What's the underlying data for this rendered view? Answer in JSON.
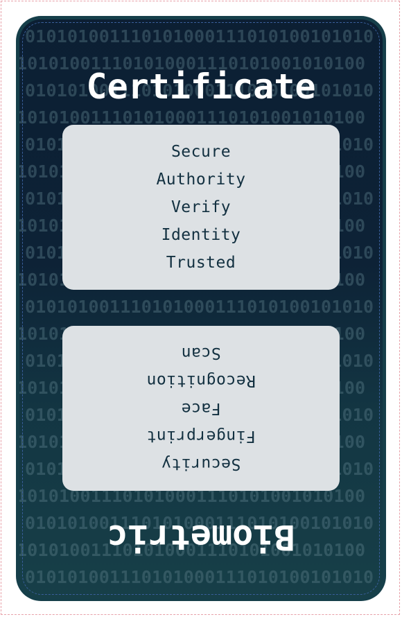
{
  "card": {
    "title_top": "Certificate",
    "title_bottom": "Biometric",
    "top_panel_words": [
      "Secure",
      "Authority",
      "Verify",
      "Identity",
      "Trusted"
    ],
    "bottom_panel_words": [
      "Security",
      "Fingerprint",
      "Face",
      "Recognition",
      "Scan"
    ],
    "background_pattern": "binary-digits",
    "colors": {
      "card_frame": "#163f4a",
      "card_top": "#0c1f33",
      "card_bottom": "#173f48",
      "panel": "#dde1e4",
      "panel_text": "#123040",
      "title": "#ffffff",
      "dashed_border": "#3a5f9c"
    }
  },
  "binary_rows": [
    "010101001110101000111010100101010",
    "101010011101010001110101001010100",
    "010101001110101000111010100101010",
    "101010011101010001110101001010100",
    "010101001110101000111010100101010",
    "101010011101010001110101001010100",
    "010101001110101000111010100101010",
    "101010011101010001110101001010100",
    "010101001110101000111010100101010",
    "101010011101010001110101001010100",
    "010101001110101000111010100101010",
    "101010011101010001110101001010100",
    "010101001110101000111010100101010",
    "101010011101010001110101001010100",
    "010101001110101000111010100101010",
    "101010011101010001110101001010100",
    "010101001110101000111010100101010",
    "101010011101010001110101001010100",
    "010101001110101000111010100101010",
    "101010011101010001110101001010100",
    "010101001110101000111010100101010"
  ]
}
